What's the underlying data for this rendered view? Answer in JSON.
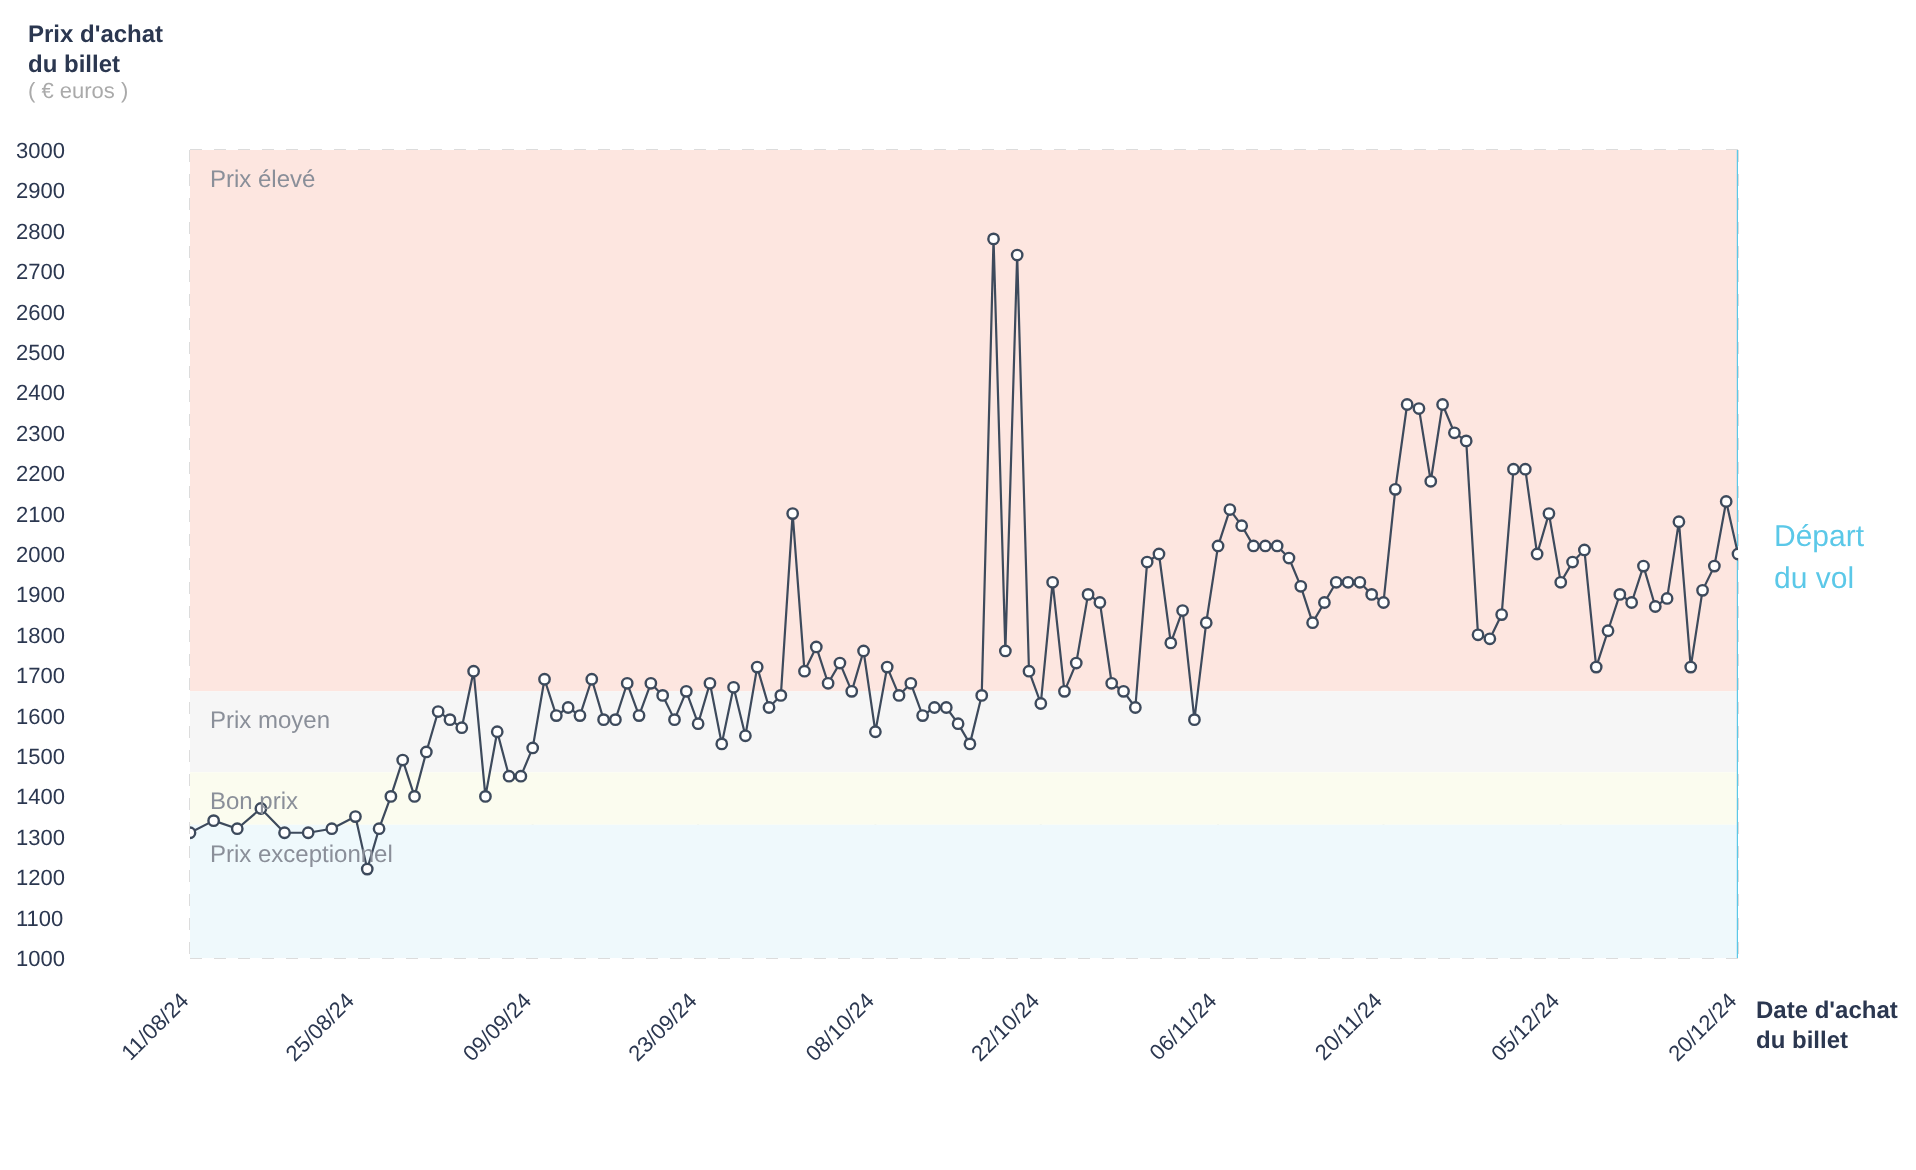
{
  "chart_data": {
    "type": "line",
    "ylabel": "Prix d'achat du billet",
    "xlabel": "Date d'achat du billet",
    "annotations": [
      "( € euros )"
    ],
    "x": [
      "--08-11",
      "--08-13",
      "--08-15",
      "--08-17",
      "--08-19",
      "--08-21",
      "--08-23",
      "--08-25",
      "--08-26",
      "--08-27",
      "--08-28",
      "--08-29",
      "--08-30",
      "--08-31",
      "--09-01",
      "--09-02",
      "--09-03",
      "--09-04",
      "--09-05",
      "--09-06",
      "--09-07",
      "--09-08",
      "--09-09",
      "--09-10",
      "--09-11",
      "--09-12",
      "--09-13",
      "--09-14",
      "--09-15",
      "--09-16",
      "--09-17",
      "--09-18",
      "--09-19",
      "--09-20",
      "--09-21",
      "--09-22",
      "--09-23",
      "--09-24",
      "--09-25",
      "--09-26",
      "--09-27",
      "--09-28",
      "--09-29",
      "--09-30",
      "--10-01",
      "--10-02",
      "--10-03",
      "--10-04",
      "--10-05",
      "--10-06",
      "--10-07",
      "--10-08",
      "--10-09",
      "--10-10",
      "--10-11",
      "--10-12",
      "--10-13",
      "--10-14",
      "--10-15",
      "--10-16",
      "--10-17",
      "--10-18",
      "--10-19",
      "--10-20",
      "--10-21",
      "--10-22",
      "--10-23",
      "--10-24",
      "--10-25",
      "--10-26",
      "--10-27",
      "--10-28",
      "--10-29",
      "--10-30",
      "--10-31",
      "--11-01",
      "--11-02",
      "--11-03",
      "--11-04",
      "--11-05",
      "--11-06",
      "--11-07",
      "--11-08",
      "--11-09",
      "--11-10",
      "--11-11",
      "--11-12",
      "--11-13",
      "--11-14",
      "--11-15",
      "--11-16",
      "--11-17",
      "--11-18",
      "--11-19",
      "--11-20",
      "--11-21",
      "--11-22",
      "--11-23",
      "--11-24",
      "--11-25",
      "--11-26",
      "--11-27",
      "--11-28",
      "--11-29",
      "--11-30",
      "--12-01",
      "--12-02",
      "--12-03",
      "--12-04",
      "--12-05",
      "--12-06",
      "--12-07",
      "--12-08",
      "--12-09",
      "--12-10",
      "--12-11",
      "--12-12",
      "--12-13",
      "--12-14",
      "--12-15",
      "--12-16",
      "--12-17",
      "--12-18",
      "--12-19",
      "--12-20"
    ],
    "values": [
      1310,
      1340,
      1320,
      1370,
      1310,
      1310,
      1320,
      1350,
      1220,
      1320,
      1400,
      1490,
      1400,
      1510,
      1610,
      1590,
      1570,
      1710,
      1400,
      1560,
      1450,
      1450,
      1520,
      1690,
      1600,
      1620,
      1600,
      1690,
      1590,
      1590,
      1680,
      1600,
      1680,
      1650,
      1590,
      1660,
      1580,
      1680,
      1530,
      1670,
      1550,
      1720,
      1620,
      1650,
      2100,
      1710,
      1770,
      1680,
      1730,
      1660,
      1760,
      1560,
      1720,
      1650,
      1680,
      1600,
      1620,
      1620,
      1580,
      1530,
      1650,
      2780,
      1760,
      2740,
      1710,
      1630,
      1930,
      1660,
      1730,
      1900,
      1880,
      1680,
      1660,
      1620,
      1980,
      2000,
      1780,
      1860,
      1590,
      1830,
      2020,
      2110,
      2070,
      2020,
      2020,
      2020,
      1990,
      1920,
      1830,
      1880,
      1930,
      1930,
      1930,
      1900,
      1880,
      2160,
      2370,
      2360,
      2180,
      2370,
      2300,
      2280,
      1800,
      1790,
      1850,
      2210,
      2210,
      2000,
      2100,
      1930,
      1980,
      2010,
      1720,
      1810,
      1900,
      1880,
      1970,
      1870,
      1890,
      2080,
      1720,
      1910,
      1970,
      2130,
      2000
    ],
    "color": "#3d4a5c",
    "marker": "circle",
    "grid": true,
    "legend": false,
    "xlim": [
      "--08-11",
      "--12-20"
    ],
    "xticks": [
      {
        "value": "--08-11",
        "label": "11/08/24"
      },
      {
        "value": "--08-25",
        "label": "25/08/24"
      },
      {
        "value": "--09-09",
        "label": "09/09/24"
      },
      {
        "value": "--09-23",
        "label": "23/09/24"
      },
      {
        "value": "--10-08",
        "label": "08/10/24"
      },
      {
        "value": "--10-22",
        "label": "22/10/24"
      },
      {
        "value": "--11-06",
        "label": "06/11/24"
      },
      {
        "value": "--11-20",
        "label": "20/11/24"
      },
      {
        "value": "--12-05",
        "label": "05/12/24"
      },
      {
        "value": "--12-20",
        "label": "20/12/24"
      }
    ],
    "ylim": [
      1000,
      3000
    ],
    "yticks": [
      1000,
      1100,
      1200,
      1300,
      1400,
      1500,
      1600,
      1700,
      1800,
      1900,
      2000,
      2100,
      2200,
      2300,
      2400,
      2500,
      2600,
      2700,
      2800,
      2900,
      3000
    ],
    "bands": [
      {
        "axis": "y",
        "from": 1660,
        "to": 3000,
        "label": "Prix élevé",
        "color": "#fde6e0"
      },
      {
        "axis": "y",
        "from": 1460,
        "to": 1660,
        "label": "Prix moyen",
        "color": "#f6f6f6"
      },
      {
        "axis": "y",
        "from": 1330,
        "to": 1460,
        "label": "Bon prix",
        "color": "#fbfcef"
      },
      {
        "axis": "y",
        "from": 1000,
        "to": 1330,
        "label": "Prix exceptionnel",
        "color": "#eff9fc"
      }
    ],
    "ref_lines": [
      {
        "axis": "x",
        "value": "--12-20",
        "label": "Départ du vol",
        "color": "#5bc8e8"
      }
    ]
  }
}
